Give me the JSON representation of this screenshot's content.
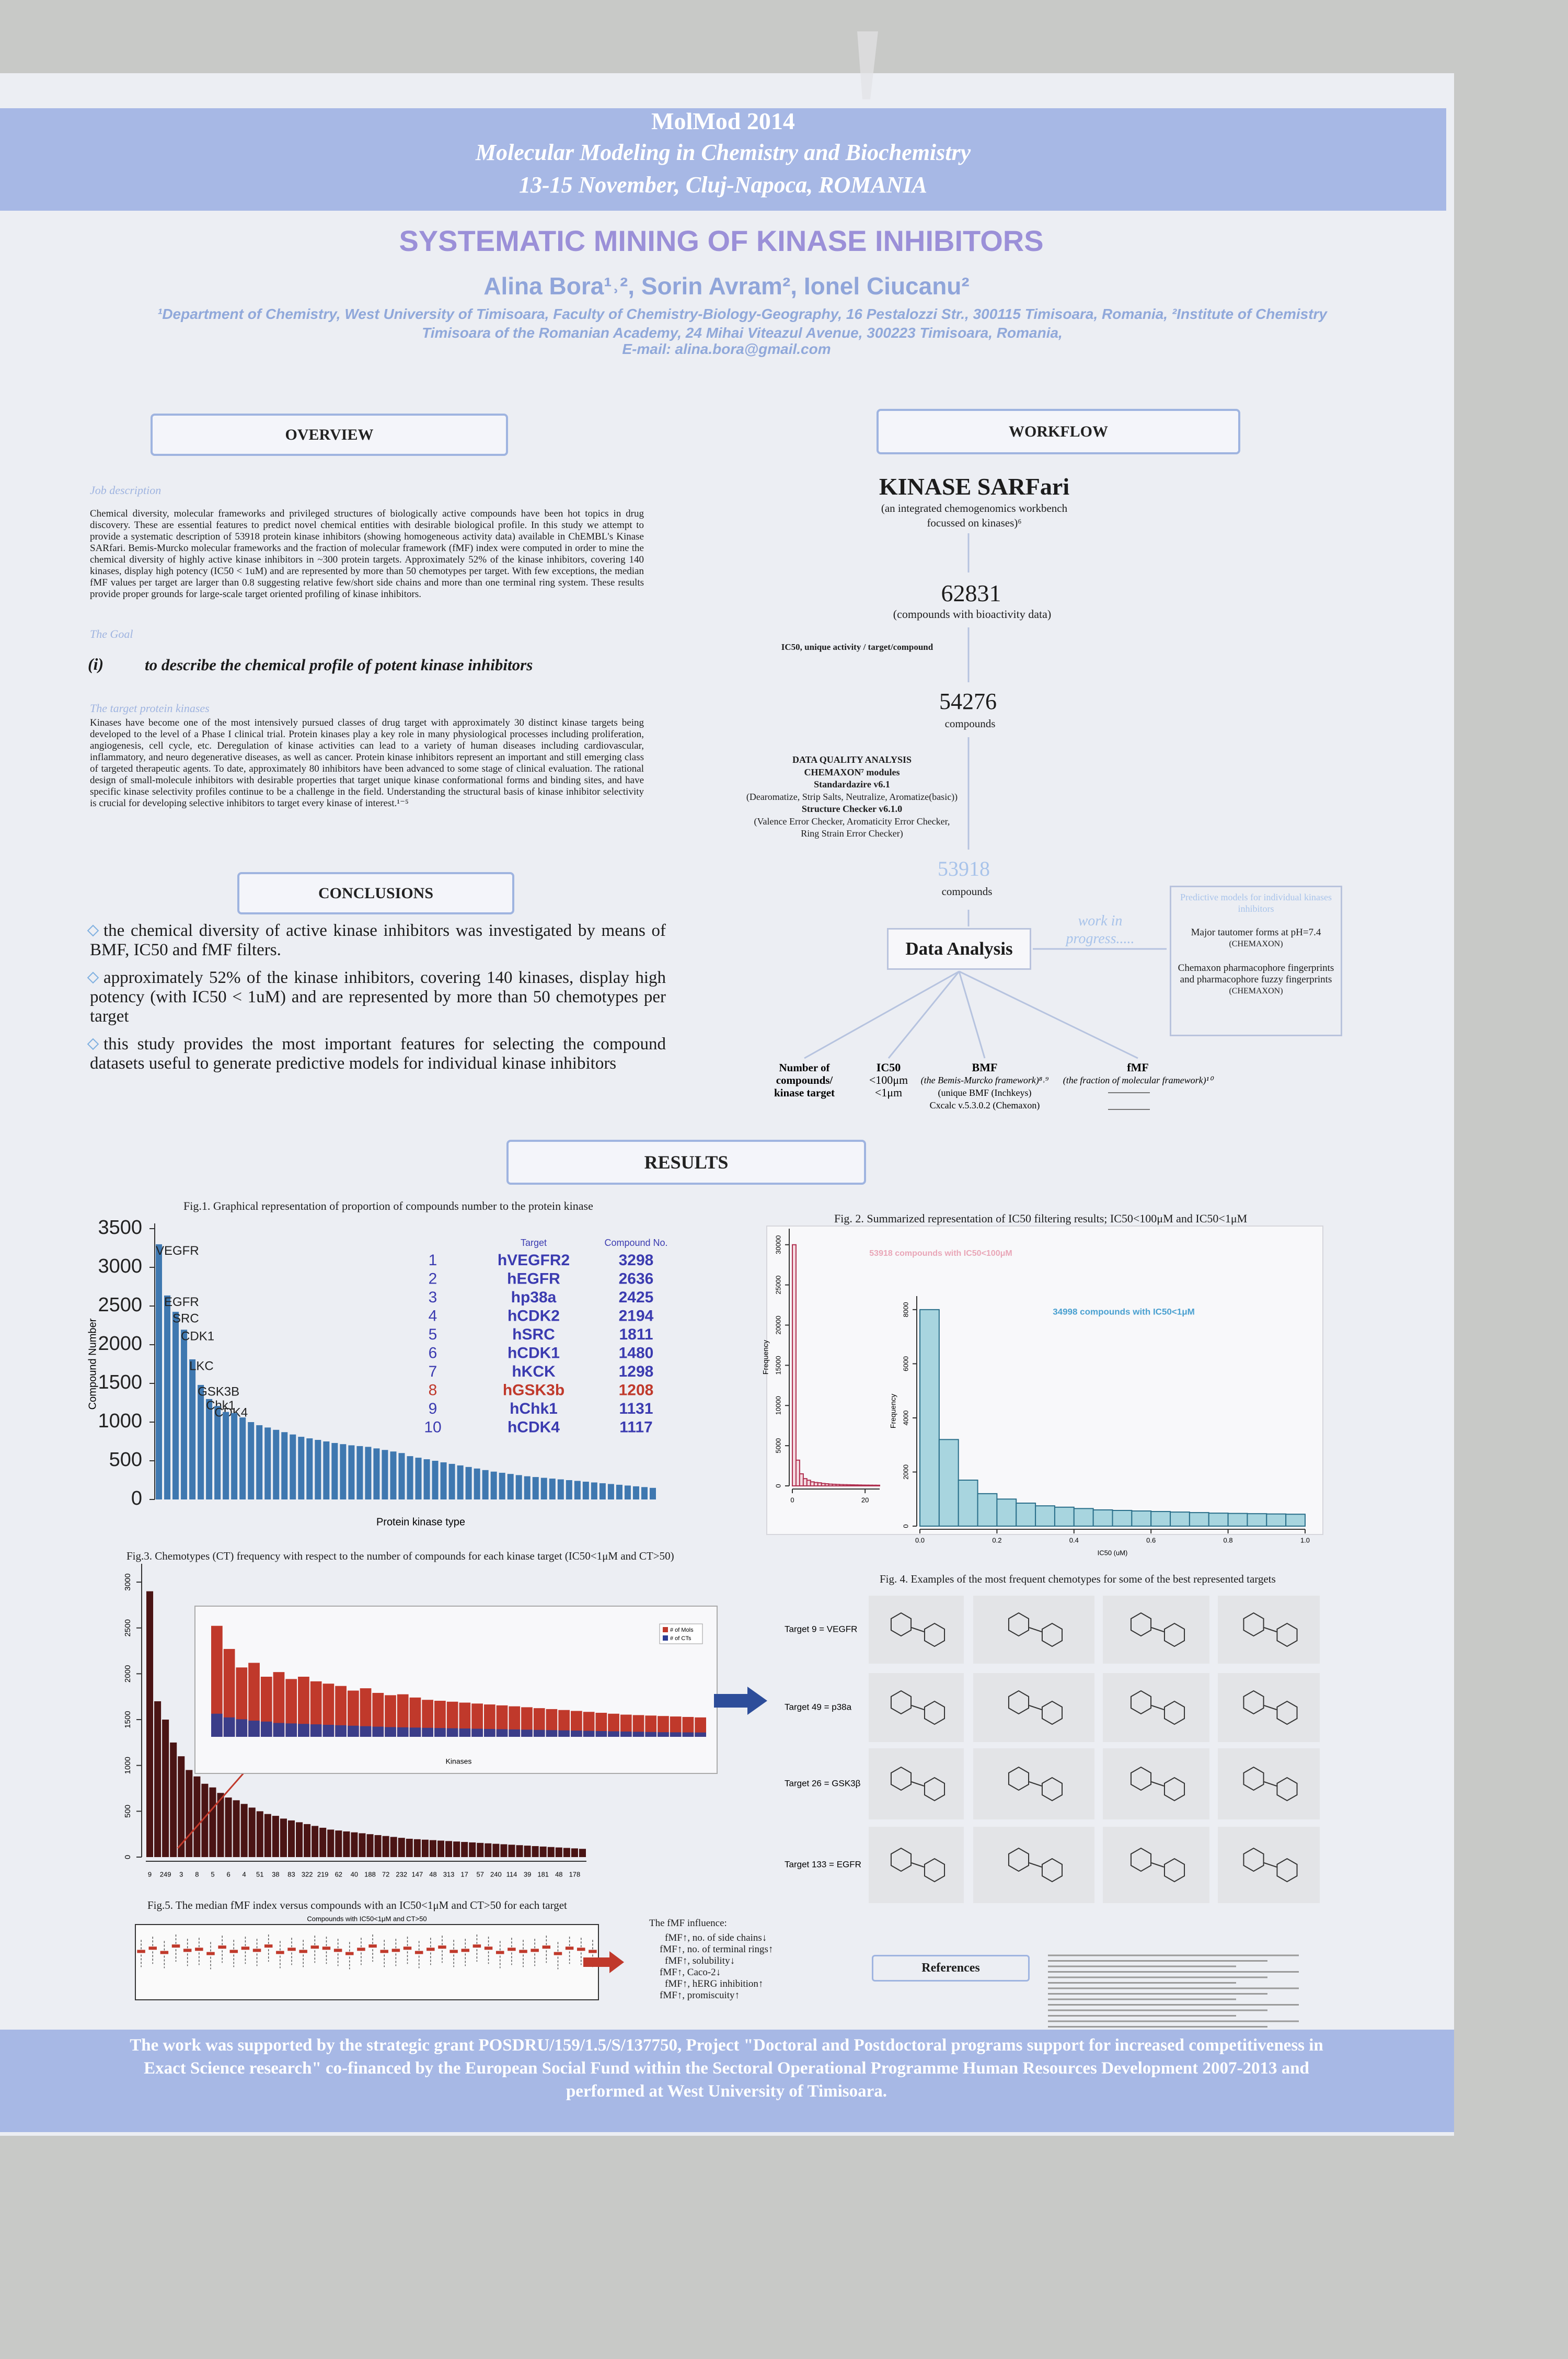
{
  "header": {
    "event": "MolMod 2014",
    "subtitle": "Molecular Modeling in Chemistry and Biochemistry",
    "dates": "13-15 November, Cluj-Napoca, ROMANIA"
  },
  "title": "SYSTEMATIC MINING OF KINASE INHIBITORS",
  "authors": "Alina Bora¹˒², Sorin Avram², Ionel Ciucanu²",
  "affiliation": "¹Department of Chemistry, West University of Timisoara, Faculty of Chemistry-Biology-Geography, 16 Pestalozzi Str., 300115 Timisoara, Romania, ²Institute of Chemistry Timisoara of the Romanian Academy, 24 Mihai Viteazul Avenue, 300223 Timisoara, Romania,",
  "email": "E-mail: alina.bora@gmail.com",
  "overview": {
    "heading": "OVERVIEW",
    "job_heading": "Job description",
    "job_text": "Chemical diversity, molecular frameworks and privileged structures of biologically active compounds have been hot topics in drug discovery. These are essential features to predict novel chemical entities with desirable biological profile. In this study we attempt to provide a systematic description of 53918 protein kinase inhibitors (showing homogeneous activity data) available in ChEMBL's Kinase SARfari. Bemis-Murcko molecular frameworks and the fraction of molecular framework (fMF) index were computed in order to mine the chemical diversity of highly active kinase inhibitors in ~300 protein targets. Approximately 52% of the kinase inhibitors, covering 140 kinases, display high potency (IC50 < 1uM) and are represented by more than 50 chemotypes per target. With few exceptions, the median fMF values per target are larger than 0.8 suggesting relative few/short side chains and more than one terminal ring system. These results provide proper grounds for large-scale target oriented profiling of kinase inhibitors.",
    "goal_heading": "The Goal",
    "goal_number": "(i)",
    "goal_text": "to describe the chemical profile of potent kinase inhibitors",
    "targets_heading": "The target protein kinases",
    "targets_text": "Kinases have become one of the most intensively pursued classes of drug target with approximately 30 distinct kinase targets being developed to the level of a Phase I clinical trial. Protein kinases play a key role in many physiological processes including proliferation, angiogenesis, cell cycle, etc. Deregulation of kinase activities can lead to a variety of human diseases including cardiovascular, inflammatory, and neuro degenerative diseases, as well as cancer. Protein kinase inhibitors represent an important and still emerging class of targeted therapeutic agents. To date, approximately 80 inhibitors have been advanced to some stage of clinical evaluation. The rational design of small-molecule inhibitors with desirable properties that target unique kinase conformational forms and binding sites, and have specific kinase selectivity profiles continue to be a challenge in the field. Understanding the structural basis of kinase inhibitor selectivity is crucial for developing selective inhibitors to target every kinase of interest.¹⁻⁵"
  },
  "conclusions": {
    "heading": "CONCLUSIONS",
    "items": [
      "the chemical diversity of active kinase inhibitors was investigated by means of BMF, IC50 and fMF filters.",
      "approximately 52% of the kinase inhibitors, covering 140 kinases, display high potency (with IC50 < 1uM) and are represented by more than 50 chemotypes per target",
      "this study provides the most important features for selecting the compound datasets useful to generate predictive models for individual kinase inhibitors"
    ]
  },
  "workflow": {
    "heading": "WORKFLOW",
    "source": "KINASE SARFari",
    "source_note": "(an integrated chemogenomics workbench focussed on kinases)⁶",
    "count1": 62831,
    "count1_label": "(compounds with bioactivity data)",
    "filter": "IC50, unique activity / target/compound",
    "count2": 54276,
    "count2_label": "compounds",
    "dq": [
      "DATA QUALITY ANALYSIS",
      "CHEMAXON⁷ modules",
      "Standardazire v6.1",
      "(Dearomatize, Strip Salts, Neutralize, Aromatize(basic))",
      "Structure Checker v6.1.0",
      "(Valence Error Checker, Aromaticity Error Checker,",
      "Ring Strain Error Checker)"
    ],
    "count3": 53918,
    "count3_label": "compounds",
    "analysis": "Data Analysis",
    "progress": "work in progress.....",
    "models": [
      "Predictive models for individual kinases inhibitors",
      "Major tautomer forms at pH=7.4",
      "(CHEMAXON)",
      "Chemaxon pharmacophore fingerprints and pharmacophore fuzzy fingerprints",
      "(CHEMAXON)"
    ],
    "outputs": [
      {
        "title": "Number of compounds/ kinase target",
        "lines": []
      },
      {
        "title": "IC50",
        "lines": [
          "<100μm",
          "<1μm"
        ]
      },
      {
        "title": "BMF",
        "lines": [
          "(the Bemis-Murcko framework)⁸˒⁹",
          "(unique BMF (Inchkeys)",
          "Cxcalc v.5.3.0.2 (Chemaxon)"
        ]
      },
      {
        "title": "fMF",
        "lines": [
          "(the fraction of molecular framework)¹⁰"
        ]
      }
    ]
  },
  "results": {
    "heading": "RESULTS",
    "fig1": {
      "type": "bar",
      "caption": "Fig.1. Graphical representation of proportion of compounds number to the protein kinase",
      "y_label": "Compound Number",
      "x_label": "Protein kinase type",
      "categories": [
        "VEGFR",
        "EGFR",
        "SRC",
        "CDK1",
        "LKC",
        "GSK3B",
        "Chk1",
        "CDK4",
        null,
        null,
        null,
        null,
        null,
        null,
        null,
        null,
        null,
        null,
        null,
        null,
        null,
        null,
        null,
        null,
        null,
        null,
        null,
        null,
        null,
        null,
        null,
        null,
        null,
        null,
        null,
        null,
        null,
        null,
        null,
        null,
        null,
        null,
        null,
        null,
        null,
        null,
        null,
        null,
        null,
        null,
        null,
        null,
        null,
        null,
        null,
        null,
        null,
        null,
        null,
        null
      ],
      "values": [
        3298,
        2636,
        2425,
        2194,
        1811,
        1480,
        1298,
        1208,
        1131,
        1117,
        1060,
        1000,
        960,
        930,
        900,
        870,
        840,
        810,
        790,
        770,
        750,
        730,
        715,
        700,
        690,
        680,
        660,
        640,
        620,
        600,
        560,
        540,
        520,
        500,
        480,
        460,
        440,
        420,
        400,
        380,
        360,
        345,
        330,
        315,
        300,
        290,
        280,
        270,
        260,
        250,
        240,
        230,
        220,
        210,
        200,
        190,
        180,
        170,
        160,
        150
      ],
      "color": "#3f78b0",
      "ylim": [
        0,
        3500
      ],
      "yticks": [
        0,
        500,
        1000,
        1500,
        2000,
        2500,
        3000,
        3500
      ],
      "table": {
        "header": [
          "Target",
          "Compound No."
        ],
        "rows": [
          [
            1,
            "hVEGFR2",
            3298
          ],
          [
            2,
            "hEGFR",
            2636
          ],
          [
            3,
            "hp38a",
            2425
          ],
          [
            4,
            "hCDK2",
            2194
          ],
          [
            5,
            "hSRC",
            1811
          ],
          [
            6,
            "hCDK1",
            1480
          ],
          [
            7,
            "hKCK",
            1298
          ],
          [
            8,
            "hGSK3b",
            1208
          ],
          [
            9,
            "hChk1",
            1131
          ],
          [
            10,
            "hCDK4",
            1117
          ]
        ]
      }
    },
    "fig2": {
      "caption": "Fig. 2. Summarized representation of IC50 filtering results; IC50<100μM and IC50<1μM",
      "charts": [
        {
          "type": "histogram",
          "label": "53918 compounds with IC50<100μM",
          "y_label": "Frequency",
          "color": "#b03050",
          "bins": [
            0,
            1,
            2,
            3,
            4,
            5,
            6,
            7,
            8,
            9,
            10,
            11,
            12,
            13,
            14,
            15,
            16,
            17,
            18,
            19,
            20,
            21,
            22,
            23,
            24
          ],
          "values": [
            30000,
            3200,
            1500,
            900,
            700,
            500,
            420,
            380,
            300,
            260,
            220,
            200,
            180,
            160,
            150,
            140,
            130,
            120,
            110,
            100,
            95,
            90,
            85,
            80
          ],
          "xlim": [
            0,
            24
          ],
          "xticks": [
            0,
            20
          ],
          "ylim": [
            0,
            32000
          ],
          "yticks": [
            0,
            5000,
            10000,
            15000,
            20000,
            25000,
            30000
          ]
        },
        {
          "type": "histogram",
          "label": "34998 compounds with IC50<1μM",
          "y_label": "Frequency",
          "x_label": "IC50 (uM)",
          "color": "#2a6f8a",
          "bins": [
            0,
            0.05,
            0.1,
            0.15,
            0.2,
            0.25,
            0.3,
            0.35,
            0.4,
            0.45,
            0.5,
            0.55,
            0.6,
            0.65,
            0.7,
            0.75,
            0.8,
            0.85,
            0.9,
            0.95,
            1
          ],
          "values": [
            8000,
            3200,
            1700,
            1200,
            1000,
            850,
            750,
            700,
            650,
            600,
            580,
            560,
            540,
            520,
            500,
            480,
            470,
            460,
            450,
            440
          ],
          "xlim": [
            0,
            1
          ],
          "xticks": [
            {
              "value": 0,
              "label": "0.0"
            },
            0.2,
            0.4,
            0.6,
            0.8,
            {
              "value": 1,
              "label": "1.0"
            }
          ],
          "ylim": [
            0,
            8500
          ],
          "yticks": [
            0,
            2000,
            4000,
            6000,
            8000
          ]
        }
      ]
    },
    "fig3": {
      "type": "bar",
      "caption": "Fig.3. Chemotypes (CT) frequency with respect to the number of compounds for each kinase target (IC50<1μM and CT>50)",
      "color": "#4a1414",
      "categories": [
        "9",
        null,
        "249",
        null,
        "3",
        null,
        "8",
        null,
        "5",
        null,
        "6",
        null,
        "4",
        null,
        "51",
        null,
        "38",
        null,
        "83",
        null,
        "322",
        null,
        "219",
        null,
        "62",
        null,
        "40",
        null,
        "188",
        null,
        "72",
        null,
        "232",
        null,
        "147",
        null,
        "48",
        null,
        "313",
        null,
        "17",
        null,
        "57",
        null,
        "240",
        null,
        "114",
        null,
        "39",
        null,
        "181",
        null,
        "48",
        null,
        "178",
        null
      ],
      "values": [
        2900,
        1700,
        1500,
        1250,
        1100,
        950,
        880,
        800,
        760,
        700,
        650,
        620,
        580,
        540,
        500,
        470,
        450,
        420,
        400,
        380,
        360,
        340,
        320,
        300,
        290,
        280,
        270,
        260,
        250,
        240,
        230,
        220,
        210,
        200,
        195,
        190,
        185,
        180,
        175,
        170,
        165,
        160,
        155,
        150,
        145,
        140,
        135,
        130,
        125,
        120,
        115,
        110,
        105,
        100,
        95,
        90
      ],
      "ylim": [
        0,
        3200
      ],
      "yticks": [
        0,
        500,
        1000,
        1500,
        2000,
        2500,
        3000
      ],
      "inset": {
        "type": "bar",
        "x_label": "Kinases",
        "ylim": [
          0,
          2600
        ],
        "series": [
          {
            "name": "# of Mols",
            "color": "#c0392b",
            "values": [
              2400,
              1900,
              1500,
              1600,
              1300,
              1400,
              1250,
              1300,
              1200,
              1150,
              1100,
              1000,
              1050,
              950,
              900,
              920,
              850,
              800,
              780,
              760,
              740,
              720,
              700,
              680,
              660,
              640,
              620,
              600,
              580,
              560,
              540,
              520,
              500,
              480,
              470,
              460,
              450,
              440,
              430,
              420
            ]
          },
          {
            "name": "# of CTs",
            "color": "#2c3e94",
            "values": [
              500,
              420,
              380,
              350,
              330,
              300,
              290,
              280,
              270,
              260,
              250,
              240,
              230,
              220,
              210,
              205,
              200,
              195,
              190,
              185,
              180,
              175,
              170,
              165,
              160,
              155,
              150,
              145,
              140,
              135,
              130,
              125,
              120,
              115,
              110,
              105,
              100,
              98,
              96,
              94
            ]
          }
        ]
      }
    },
    "fig4": {
      "caption": "Fig. 4. Examples of the most frequent chemotypes for some of the best represented targets",
      "rows": [
        "Target 9 = VEGFR",
        "Target 49 = p38a",
        "Target 26 = GSK3β",
        "Target 133 = EGFR"
      ]
    },
    "fig5": {
      "type": "box",
      "caption": "Fig.5. The median fMF index versus compounds with an IC50<1μM and CT>50 for each target",
      "inner_title": "Compounds with IC50<1μM and CT>50",
      "color": "#c0392b",
      "values": [
        0.85,
        0.88,
        0.84,
        0.9,
        0.86,
        0.87,
        0.83,
        0.89,
        0.85,
        0.88,
        0.86,
        0.9,
        0.84,
        0.87,
        0.85,
        0.89,
        0.88,
        0.86,
        0.83,
        0.87,
        0.9,
        0.85,
        0.86,
        0.88,
        0.84,
        0.87,
        0.89,
        0.85,
        0.86,
        0.9,
        0.88,
        0.84,
        0.87,
        0.85,
        0.86,
        0.89,
        0.83,
        0.88,
        0.87,
        0.85
      ],
      "ylim": [
        0.4,
        1.1
      ]
    },
    "influence": {
      "heading": "The fMF influence:",
      "items": [
        "fMF↑, no. of side chains↓",
        "fMF↑, no. of terminal rings↑",
        "fMF↑, solubility↓",
        "fMF↑, Caco-2↓",
        "fMF↑, hERG inhibition↑",
        "fMF↑, promiscuity↑"
      ]
    },
    "references": "References"
  },
  "footer": "The work was supported by the strategic grant POSDRU/159/1.5/S/137750, Project \"Doctoral and Postdoctoral programs support for increased competitiveness in Exact Science research\" co-financed by the European Social Fund within the Sectoral Operational Programme Human Resources Development 2007-2013 and performed at West University of Timisoara."
}
